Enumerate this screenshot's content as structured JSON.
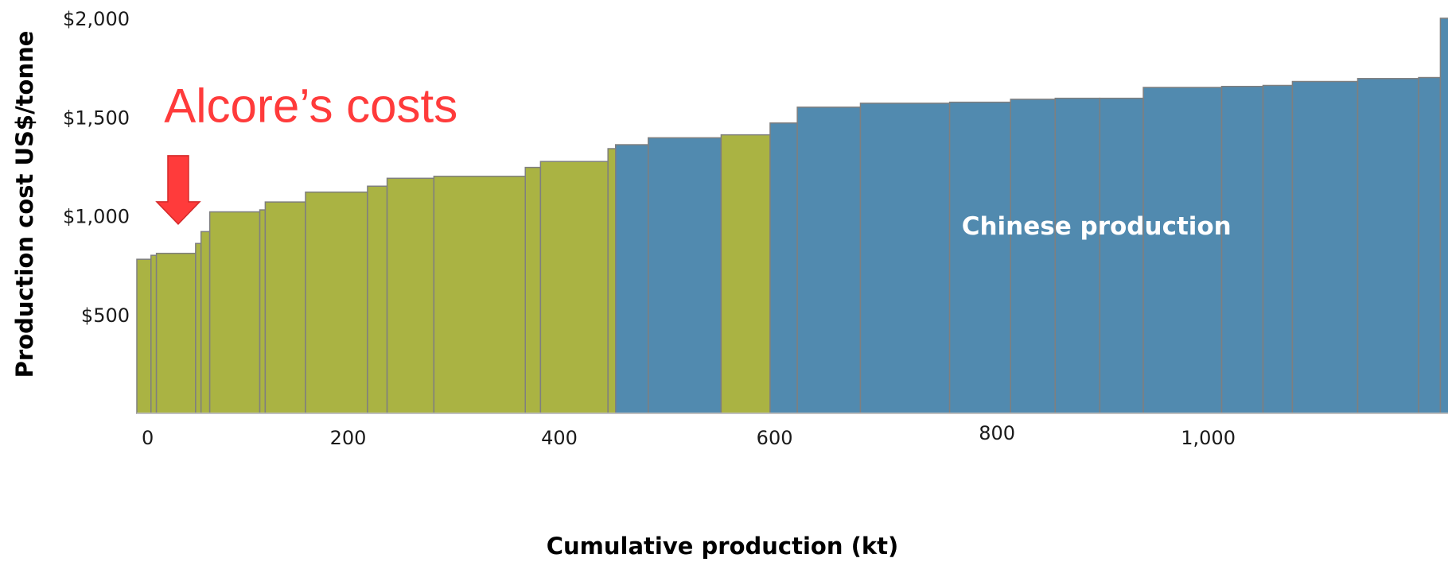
{
  "chart_data": {
    "type": "bar",
    "subtype": "cost-curve",
    "title": "",
    "xlabel": "Cumulative production (kt)",
    "ylabel": "Production cost US$/tonne",
    "xlim": [
      0,
      1205
    ],
    "ylim": [
      0,
      2000
    ],
    "x_ticks": [
      {
        "value": 0,
        "label": "0"
      },
      {
        "value": 200,
        "label": "200"
      },
      {
        "value": 400,
        "label": "400"
      },
      {
        "value": 600,
        "label": "600"
      },
      {
        "value": 800,
        "label": "800"
      },
      {
        "value": 1000,
        "label": "1,000"
      }
    ],
    "y_ticks": [
      {
        "value": 500,
        "label": "$500"
      },
      {
        "value": 1000,
        "label": "$1,000"
      },
      {
        "value": 1500,
        "label": "$1,500"
      },
      {
        "value": 2000,
        "label": "$2,000"
      }
    ],
    "grid": false,
    "colors": {
      "other": "#aab343",
      "chinese": "#518aaf",
      "annotation": "#ff3b3b",
      "outline": "#7f7f7f"
    },
    "bars": [
      {
        "x0": 0,
        "x1": 13,
        "value": 780,
        "group": "other"
      },
      {
        "x0": 13,
        "x1": 18,
        "value": 800,
        "group": "other"
      },
      {
        "x0": 18,
        "x1": 54,
        "value": 810,
        "group": "other"
      },
      {
        "x0": 54,
        "x1": 59,
        "value": 860,
        "group": "other"
      },
      {
        "x0": 59,
        "x1": 67,
        "value": 920,
        "group": "other"
      },
      {
        "x0": 67,
        "x1": 113,
        "value": 1020,
        "group": "other"
      },
      {
        "x0": 113,
        "x1": 118,
        "value": 1030,
        "group": "other"
      },
      {
        "x0": 118,
        "x1": 155,
        "value": 1070,
        "group": "other"
      },
      {
        "x0": 155,
        "x1": 212,
        "value": 1120,
        "group": "other"
      },
      {
        "x0": 212,
        "x1": 230,
        "value": 1150,
        "group": "other"
      },
      {
        "x0": 230,
        "x1": 273,
        "value": 1190,
        "group": "other"
      },
      {
        "x0": 273,
        "x1": 357,
        "value": 1200,
        "group": "other"
      },
      {
        "x0": 357,
        "x1": 371,
        "value": 1245,
        "group": "other"
      },
      {
        "x0": 371,
        "x1": 433,
        "value": 1275,
        "group": "other"
      },
      {
        "x0": 433,
        "x1": 440,
        "value": 1340,
        "group": "other"
      },
      {
        "x0": 440,
        "x1": 470,
        "value": 1360,
        "group": "chinese"
      },
      {
        "x0": 470,
        "x1": 537,
        "value": 1395,
        "group": "chinese"
      },
      {
        "x0": 537,
        "x1": 582,
        "value": 1410,
        "group": "other"
      },
      {
        "x0": 582,
        "x1": 607,
        "value": 1470,
        "group": "chinese"
      },
      {
        "x0": 607,
        "x1": 665,
        "value": 1550,
        "group": "chinese"
      },
      {
        "x0": 665,
        "x1": 747,
        "value": 1570,
        "group": "chinese"
      },
      {
        "x0": 747,
        "x1": 803,
        "value": 1575,
        "group": "chinese"
      },
      {
        "x0": 803,
        "x1": 844,
        "value": 1590,
        "group": "chinese"
      },
      {
        "x0": 844,
        "x1": 885,
        "value": 1595,
        "group": "chinese"
      },
      {
        "x0": 885,
        "x1": 925,
        "value": 1595,
        "group": "chinese"
      },
      {
        "x0": 925,
        "x1": 997,
        "value": 1650,
        "group": "chinese"
      },
      {
        "x0": 997,
        "x1": 1035,
        "value": 1655,
        "group": "chinese"
      },
      {
        "x0": 1035,
        "x1": 1062,
        "value": 1660,
        "group": "chinese"
      },
      {
        "x0": 1062,
        "x1": 1122,
        "value": 1680,
        "group": "chinese"
      },
      {
        "x0": 1122,
        "x1": 1178,
        "value": 1695,
        "group": "chinese"
      },
      {
        "x0": 1178,
        "x1": 1198,
        "value": 1700,
        "group": "chinese"
      },
      {
        "x0": 1198,
        "x1": 1208,
        "value": 2000,
        "group": "chinese"
      }
    ],
    "annotations": [
      {
        "text": "Alcore’s costs",
        "x": 25,
        "y": 1500,
        "color": "#ff3b3b",
        "icon": "arrow-down-icon",
        "arrow_at": {
          "x": 38,
          "y": 950
        }
      },
      {
        "text": "Chinese production",
        "x": 882,
        "y": 950,
        "color": "#ffffff"
      }
    ]
  }
}
